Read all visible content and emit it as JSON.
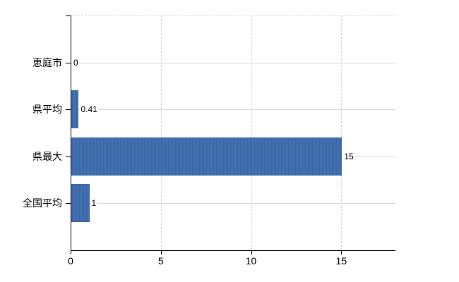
{
  "chart_data": {
    "type": "bar",
    "orientation": "horizontal",
    "categories": [
      "恵庭市",
      "県平均",
      "県最大",
      "全国平均"
    ],
    "values": [
      0,
      0.41,
      15,
      1
    ],
    "value_labels": [
      "0",
      "0.41",
      "15",
      "1"
    ],
    "xlim": [
      0,
      18
    ],
    "xticks": [
      0,
      5,
      10,
      15
    ],
    "xtick_labels": [
      "0",
      "5",
      "10",
      "15"
    ],
    "grid": true,
    "legend": false,
    "colors": {
      "bar": "#3c6cad",
      "row_gridline": "#d2dad2",
      "dashed_gridline": "#d6d6d6",
      "axis": "#000000",
      "background": "#ffffff"
    }
  }
}
